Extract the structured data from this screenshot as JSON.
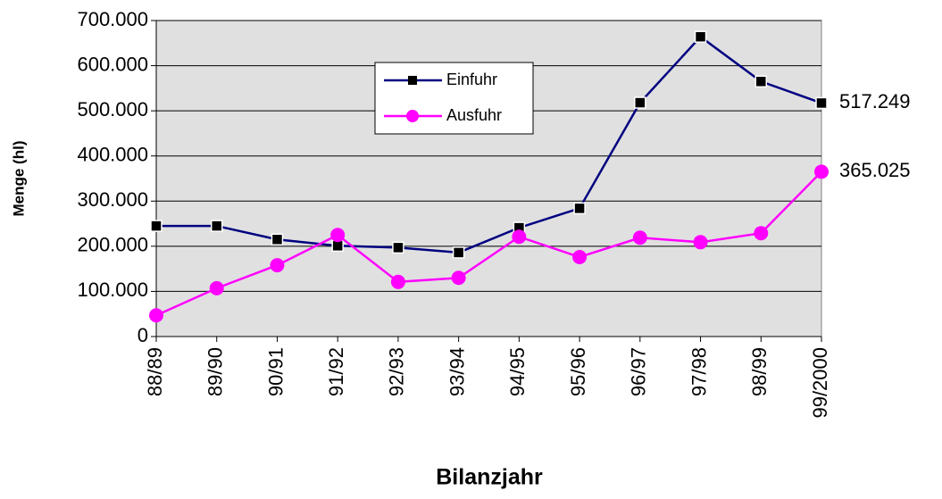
{
  "chart_data": {
    "type": "line",
    "xlabel": "Bilanzjahr",
    "ylabel": "Menge (hl)",
    "categories": [
      "88/89",
      "89/90",
      "90/91",
      "91/92",
      "92/93",
      "93/94",
      "94/95",
      "95/96",
      "96/97",
      "97/98",
      "98/99",
      "99/2000"
    ],
    "series": [
      {
        "name": "Einfuhr",
        "color": "#000080",
        "marker": "square",
        "values": [
          245000,
          245000,
          215000,
          201000,
          197000,
          186000,
          241000,
          284000,
          518000,
          664000,
          565000,
          517249
        ],
        "value_labels": [
          null,
          null,
          null,
          null,
          null,
          null,
          null,
          null,
          null,
          null,
          null,
          "517.249"
        ]
      },
      {
        "name": "Ausfuhr",
        "color": "#ff00ff",
        "marker": "circle",
        "values": [
          47000,
          107000,
          158000,
          225000,
          121000,
          130000,
          221000,
          176000,
          219000,
          209000,
          229000,
          365025
        ],
        "value_labels": [
          null,
          null,
          null,
          null,
          null,
          null,
          null,
          null,
          null,
          null,
          null,
          "365.025"
        ]
      }
    ],
    "ylim": [
      0,
      700000
    ],
    "yticks": [
      0,
      {
        "value": 100000,
        "label": "100.000"
      },
      {
        "value": 200000,
        "label": "200.000"
      },
      {
        "value": 300000,
        "label": "300.000"
      },
      {
        "value": 400000,
        "label": "400.000"
      },
      {
        "value": 500000,
        "label": "500.000"
      },
      {
        "value": 600000,
        "label": "600.000"
      },
      {
        "value": 700000,
        "label": "700.000"
      }
    ],
    "grid": true,
    "legend": "top-center"
  }
}
